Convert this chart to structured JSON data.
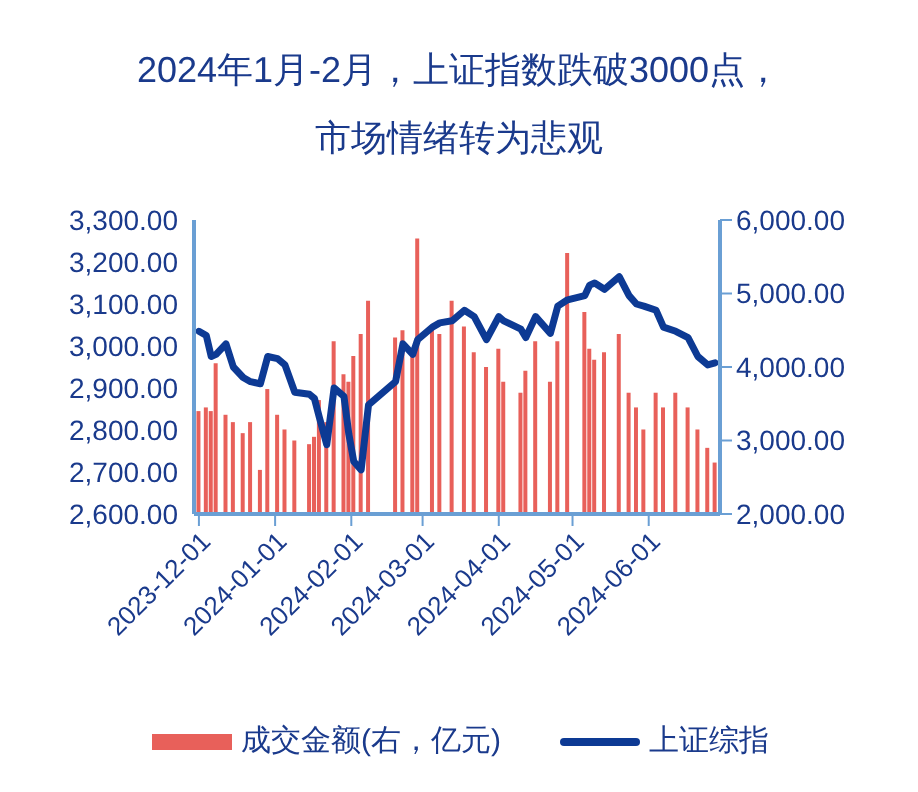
{
  "chart_data": {
    "type": "line",
    "title": "2024年1月-2月，上证指数跌破3000点，市场情绪转为悲观",
    "x": [
      "2023-12-01",
      "2023-12-04",
      "2023-12-06",
      "2023-12-08",
      "2023-12-12",
      "2023-12-15",
      "2023-12-19",
      "2023-12-22",
      "2023-12-26",
      "2023-12-29",
      "2024-01-02",
      "2024-01-05",
      "2024-01-09",
      "2024-01-15",
      "2024-01-17",
      "2024-01-19",
      "2024-01-22",
      "2024-01-25",
      "2024-01-29",
      "2024-01-31",
      "2024-02-02",
      "2024-02-05",
      "2024-02-08",
      "2024-02-19",
      "2024-02-22",
      "2024-02-26",
      "2024-02-28",
      "2024-03-05",
      "2024-03-08",
      "2024-03-13",
      "2024-03-18",
      "2024-03-22",
      "2024-03-27",
      "2024-04-01",
      "2024-04-03",
      "2024-04-10",
      "2024-04-12",
      "2024-04-16",
      "2024-04-22",
      "2024-04-25",
      "2024-04-29",
      "2024-05-06",
      "2024-05-08",
      "2024-05-10",
      "2024-05-14",
      "2024-05-20",
      "2024-05-24",
      "2024-05-27",
      "2024-05-30",
      "2024-06-04",
      "2024-06-07",
      "2024-06-12",
      "2024-06-17",
      "2024-06-21",
      "2024-06-25",
      "2024-06-28"
    ],
    "series": [
      {
        "name": "成交金额(右，亿元)",
        "type": "bar",
        "axis": "y2",
        "color": "#e8605a",
        "values": [
          3400,
          3450,
          3400,
          4050,
          3350,
          3250,
          3100,
          3250,
          2600,
          3700,
          3350,
          3150,
          3000,
          2950,
          3050,
          3550,
          3250,
          4350,
          3900,
          3800,
          4150,
          4450,
          4900,
          4400,
          4500,
          4200,
          5750,
          4550,
          4450,
          4900,
          4550,
          4200,
          4000,
          4250,
          3800,
          3650,
          3950,
          4350,
          3800,
          4350,
          5550,
          4750,
          4250,
          4100,
          4200,
          4450,
          3650,
          3450,
          3150,
          3650,
          3450,
          3650,
          3450,
          3150,
          2900,
          2700
        ]
      },
      {
        "name": "上证综指",
        "color": "#0d3a94",
        "values": [
          3035,
          3025,
          2975,
          2980,
          3005,
          2950,
          2925,
          2915,
          2910,
          2975,
          2970,
          2955,
          2890,
          2885,
          2875,
          2830,
          2765,
          2900,
          2880,
          2790,
          2725,
          2705,
          2860,
          2915,
          3005,
          2980,
          3015,
          3045,
          3055,
          3060,
          3085,
          3070,
          3015,
          3070,
          3060,
          3040,
          3020,
          3070,
          3030,
          3095,
          3110,
          3120,
          3145,
          3150,
          3135,
          3165,
          3120,
          3100,
          3095,
          3085,
          3045,
          3035,
          3020,
          2975,
          2955,
          2960
        ]
      }
    ],
    "xlim": [
      "2023-11-29",
      "2024-06-30"
    ],
    "xticks": [
      "2023-12-01",
      "2024-01-01",
      "2024-02-01",
      "2024-03-01",
      "2024-04-01",
      "2024-05-01",
      "2024-06-01"
    ],
    "ylim": [
      2600,
      3300
    ],
    "yticks": [
      {
        "value": 2600,
        "label": "2,600.00"
      },
      {
        "value": 2700,
        "label": "2,700.00"
      },
      {
        "value": 2800,
        "label": "2,800.00"
      },
      {
        "value": 2900,
        "label": "2,900.00"
      },
      {
        "value": 3000,
        "label": "3,000.00"
      },
      {
        "value": 3100,
        "label": "3,100.00"
      },
      {
        "value": 3200,
        "label": "3,200.00"
      },
      {
        "value": 3300,
        "label": "3,300.00"
      }
    ],
    "y2lim": [
      2000,
      6000
    ],
    "y2ticks": [
      {
        "value": 2000,
        "label": "2,000.00"
      },
      {
        "value": 3000,
        "label": "3,000.00"
      },
      {
        "value": 4000,
        "label": "4,000.00"
      },
      {
        "value": 5000,
        "label": "5,000.00"
      },
      {
        "value": 6000,
        "label": "6,000.00"
      }
    ],
    "legend": "bottom",
    "marker": "none",
    "line_style": "solid"
  }
}
